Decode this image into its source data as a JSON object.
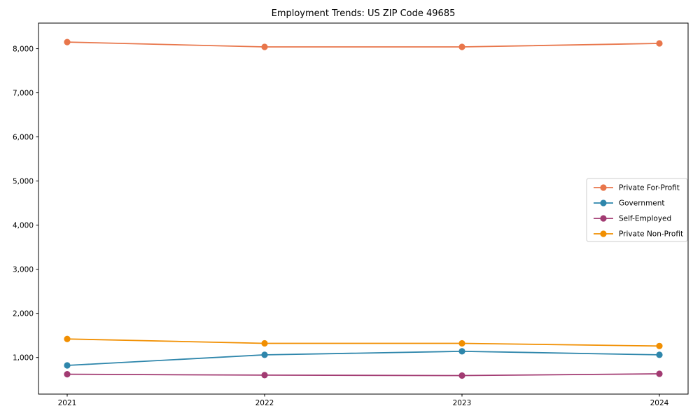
{
  "chart_data": {
    "type": "line",
    "title": "Employment Trends: US ZIP Code 49685",
    "xlabel": "",
    "ylabel": "",
    "grid": false,
    "legend_position": "center-right",
    "x_labels": [
      "2021",
      "2022",
      "2023",
      "2024"
    ],
    "yticks": [
      1000,
      2000,
      3000,
      4000,
      5000,
      6000,
      7000,
      8000
    ],
    "ytick_labels": [
      "1,000",
      "2,000",
      "3,000",
      "4,000",
      "5,000",
      "6,000",
      "7,000",
      "8,000"
    ],
    "ylim": [
      170,
      8580
    ],
    "series": [
      {
        "name": "Private For-Profit",
        "color": "#e8764b",
        "values": [
          8150,
          8040,
          8040,
          8120
        ]
      },
      {
        "name": "Government",
        "color": "#2e86ab",
        "values": [
          820,
          1060,
          1140,
          1060
        ]
      },
      {
        "name": "Self-Employed",
        "color": "#a23b72",
        "values": [
          620,
          600,
          590,
          630
        ]
      },
      {
        "name": "Private Non-Profit",
        "color": "#f18f01",
        "values": [
          1420,
          1320,
          1320,
          1260
        ]
      }
    ]
  }
}
